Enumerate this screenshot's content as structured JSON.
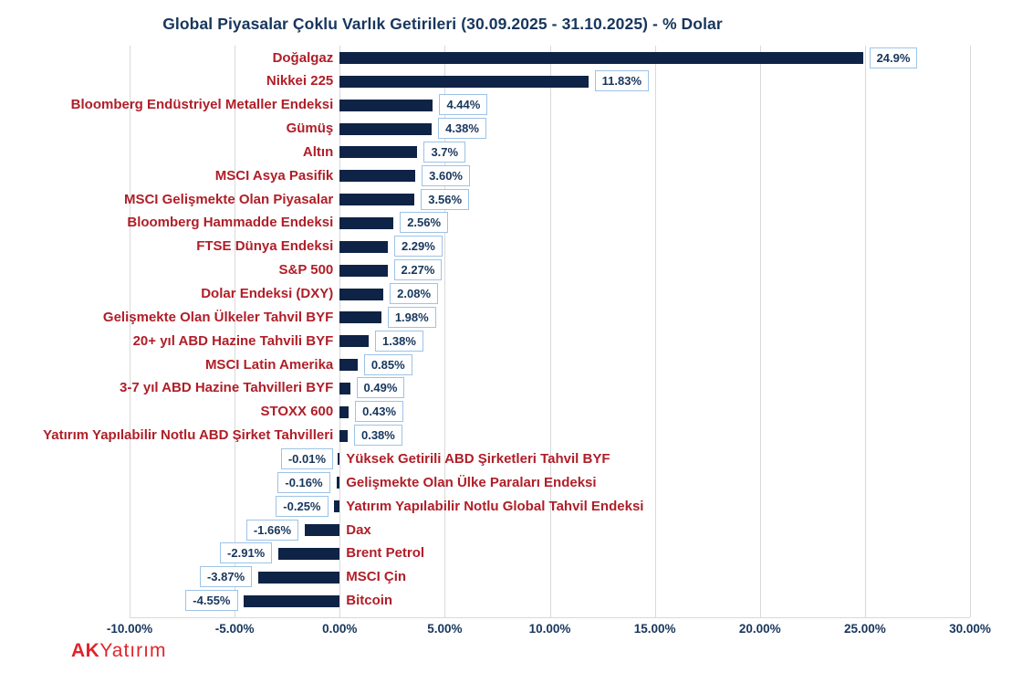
{
  "title": "Global Piyasalar Çoklu Varlık Getirileri (30.09.2025 - 31.10.2025) - % Dolar",
  "logo": {
    "bold": "AK",
    "light": "Yatırım"
  },
  "colors": {
    "bar": "#0e2345",
    "category_label": "#b01e28",
    "value_text": "#17365d",
    "value_box_border": "#9dc3e6",
    "title": "#17365d",
    "gridline": "#d9d9d9",
    "logo_red": "#e0242b"
  },
  "chart_data": {
    "type": "bar",
    "orientation": "horizontal",
    "title": "Global Piyasalar Çoklu Varlık Getirileri (30.09.2025 - 31.10.2025) - % Dolar",
    "categories": [
      "Doğalgaz",
      "Nikkei 225",
      "Bloomberg Endüstriyel Metaller Endeksi",
      "Gümüş",
      "Altın",
      "MSCI Asya Pasifik",
      "MSCI Gelişmekte Olan Piyasalar",
      "Bloomberg Hammadde Endeksi",
      "FTSE Dünya Endeksi",
      "S&P 500",
      "Dolar Endeksi (DXY)",
      "Gelişmekte Olan Ülkeler Tahvil BYF",
      "20+ yıl ABD Hazine Tahvili BYF",
      "MSCI Latin Amerika",
      "3-7 yıl ABD Hazine Tahvilleri BYF",
      "STOXX 600",
      "Yatırım Yapılabilir Notlu  ABD Şirket Tahvilleri",
      "Yüksek Getirili ABD Şirketleri Tahvil BYF",
      "Gelişmekte Olan Ülke Paraları Endeksi",
      "Yatırım Yapılabilir Notlu Global Tahvil Endeksi",
      "Dax",
      "Brent Petrol",
      "MSCI Çin",
      "Bitcoin"
    ],
    "values": [
      24.9,
      11.83,
      4.44,
      4.38,
      3.7,
      3.6,
      3.56,
      2.56,
      2.29,
      2.27,
      2.08,
      1.98,
      1.38,
      0.85,
      0.49,
      0.43,
      0.38,
      -0.01,
      -0.16,
      -0.25,
      -1.66,
      -2.91,
      -3.87,
      -4.55
    ],
    "value_labels": [
      "24.9%",
      "11.83%",
      "4.44%",
      "4.38%",
      "3.7%",
      "3.60%",
      "3.56%",
      "2.56%",
      "2.29%",
      "2.27%",
      "2.08%",
      "1.98%",
      "1.38%",
      "0.85%",
      "0.49%",
      "0.43%",
      "0.38%",
      "-0.01%",
      "-0.16%",
      "-0.25%",
      "-1.66%",
      "-2.91%",
      "-3.87%",
      "-4.55%"
    ],
    "xlim": [
      -10,
      30
    ],
    "x_tick_values": [
      -10,
      -5,
      0,
      5,
      10,
      15,
      20,
      25,
      30
    ],
    "x_tick_labels": [
      "-10.00%",
      "-5.00%",
      "0.00%",
      "5.00%",
      "10.00%",
      "15.00%",
      "20.00%",
      "25.00%",
      "30.00%"
    ],
    "xlabel": "",
    "ylabel": "",
    "grid": true,
    "legend": false
  }
}
